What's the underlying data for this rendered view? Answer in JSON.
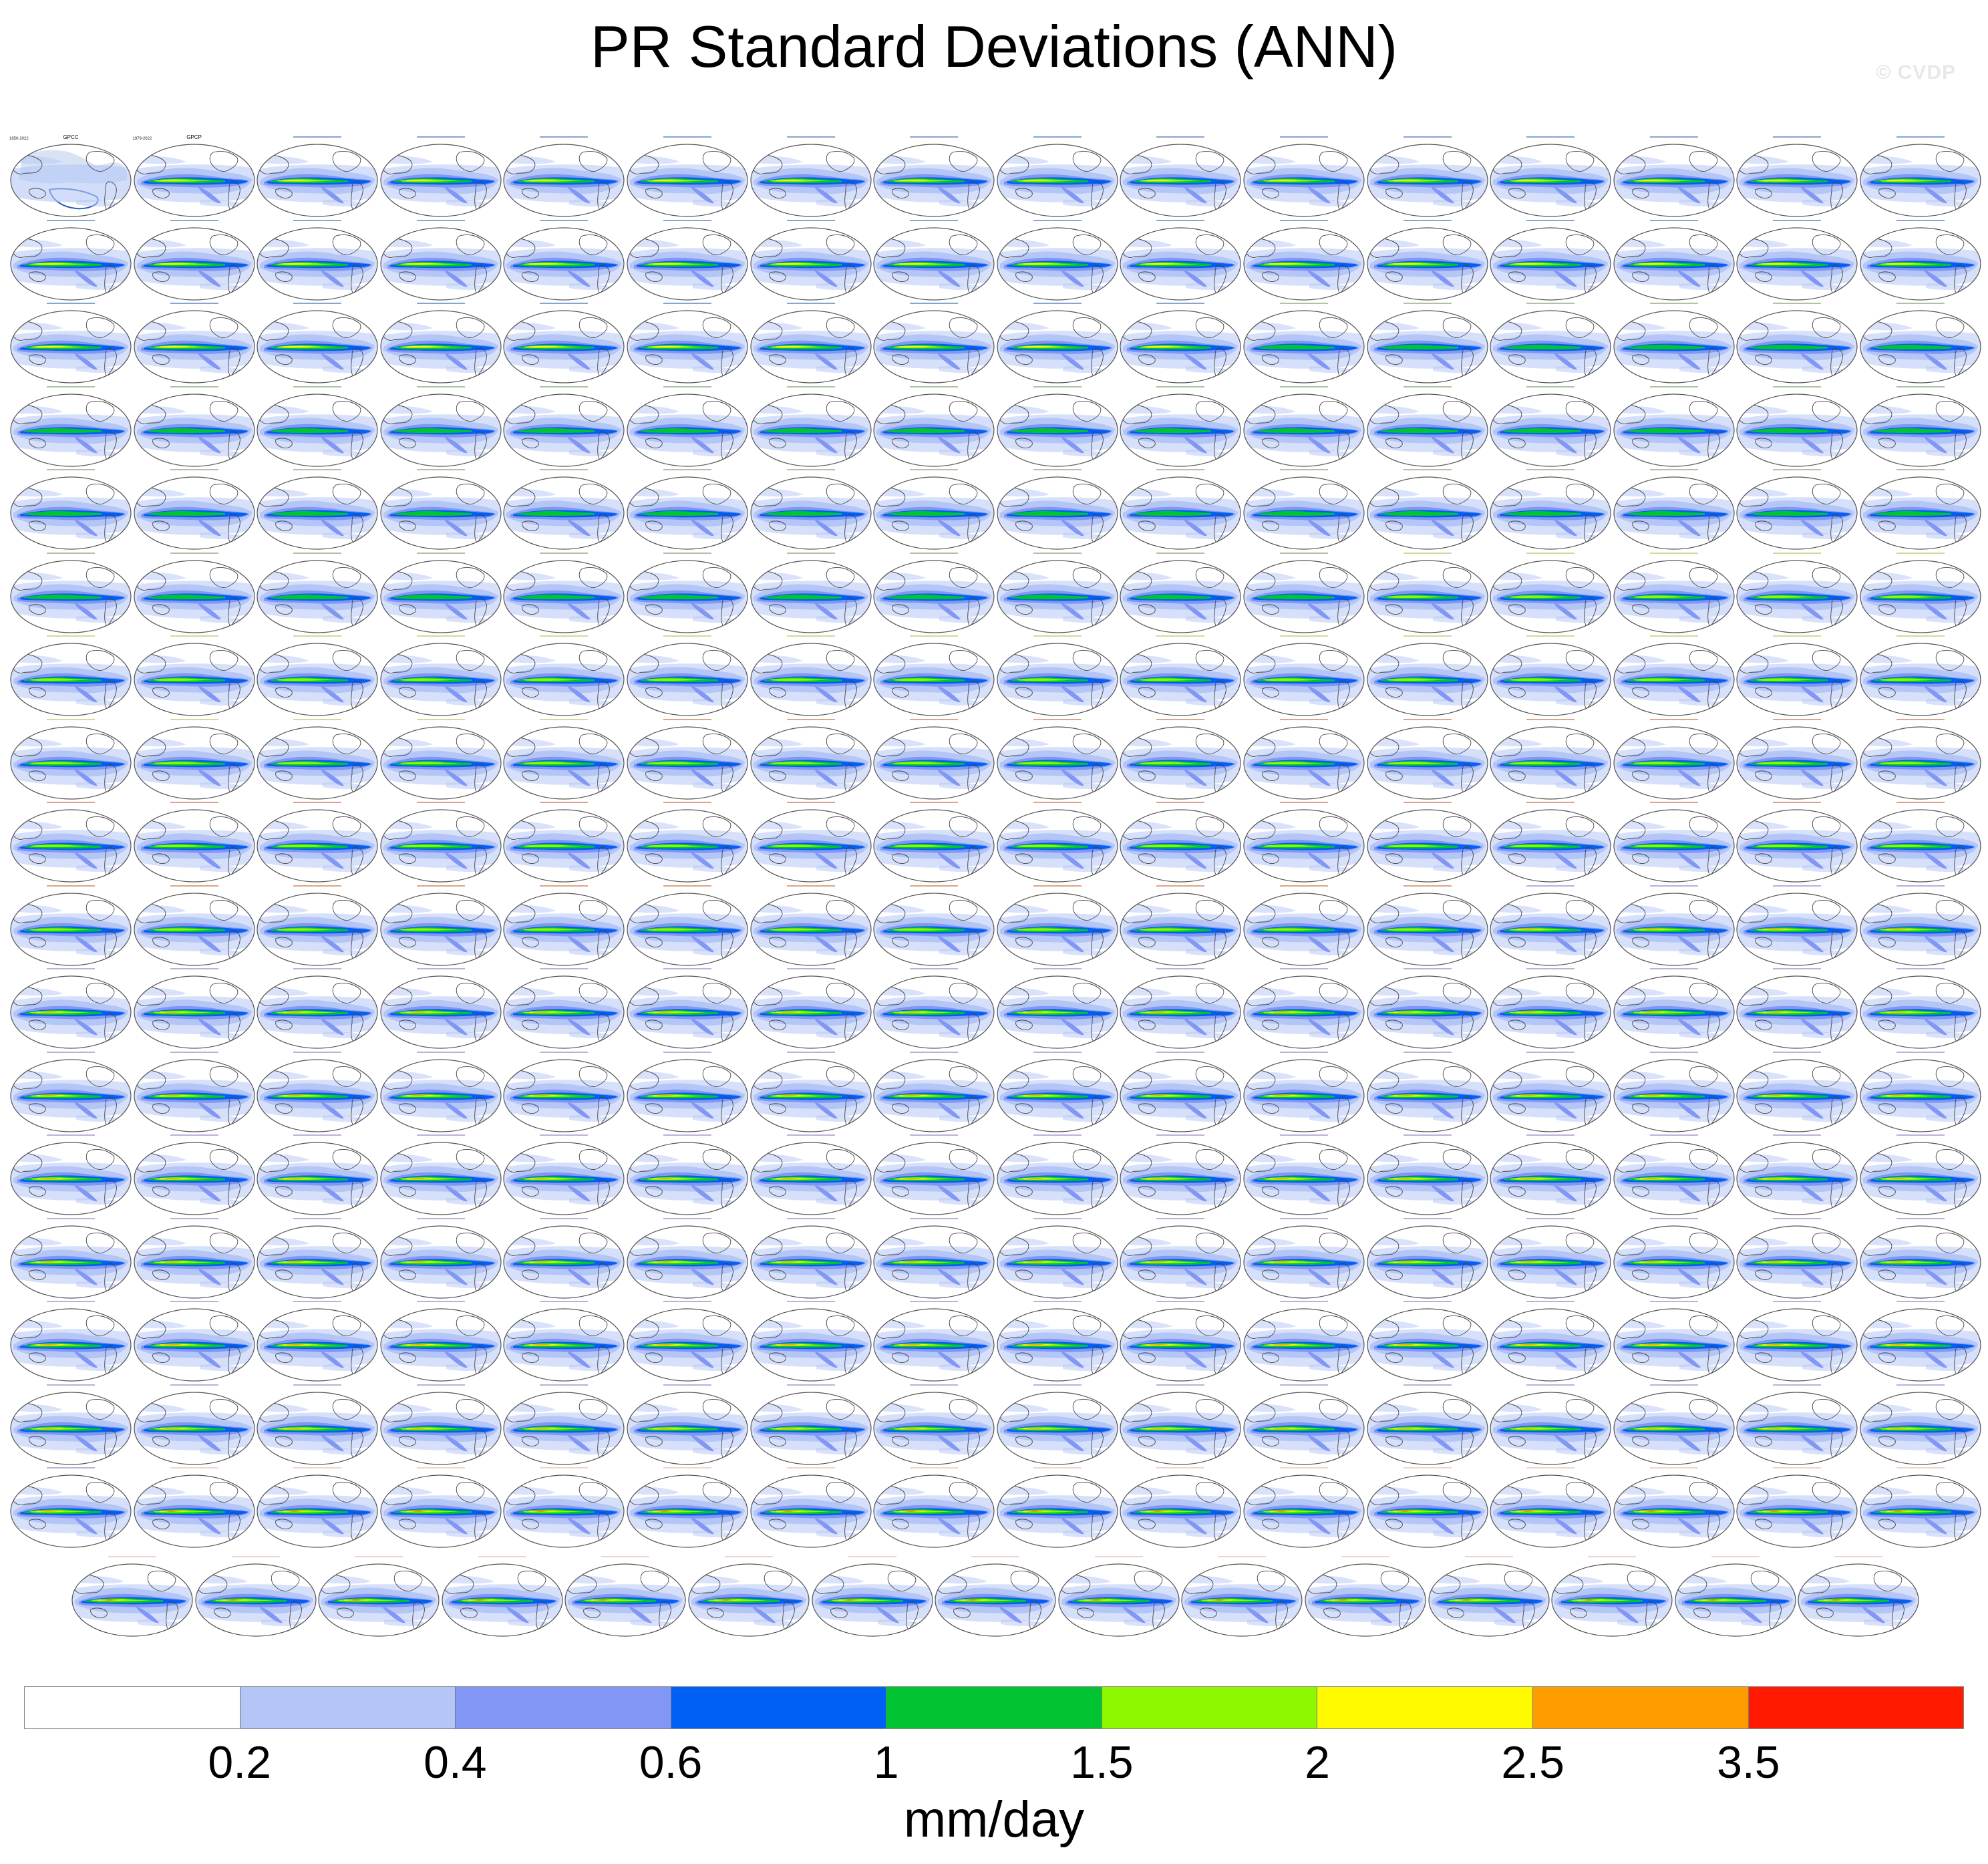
{
  "title": "PR Standard Deviations (ANN)",
  "watermark": "© CVDP",
  "colorbar": {
    "colors": [
      "#ffffff",
      "#b4c6f6",
      "#8196f5",
      "#0060f5",
      "#00c431",
      "#8ef800",
      "#fffa00",
      "#ff9c00",
      "#ff1a00"
    ],
    "ticks": [
      "0.2",
      "0.4",
      "0.6",
      "1",
      "1.5",
      "2",
      "2.5",
      "3.5"
    ],
    "units": "mm/day"
  },
  "panel_grid": {
    "rows": 18,
    "columns": 16,
    "last_row_panels": 15,
    "title_colors": {
      "obs": "#000000",
      "access": "#1f5fa8",
      "canesm": "#6e8f5a",
      "bright": "#b6b64a",
      "cesm1": "#c05a2a",
      "cesm2": "#8a6cc0",
      "cesm2w": "#e8b0a0"
    },
    "row_groups": [
      [
        "obs",
        "obs",
        "access",
        "access",
        "access",
        "access",
        "access",
        "access",
        "access",
        "access",
        "access",
        "access",
        "access",
        "access",
        "access",
        "access"
      ],
      [
        "access",
        "access",
        "access",
        "access",
        "access",
        "access",
        "access",
        "access",
        "access",
        "access",
        "access",
        "access",
        "access",
        "access",
        "access",
        "access"
      ],
      [
        "access",
        "access",
        "access",
        "access",
        "access",
        "access",
        "access",
        "access",
        "access",
        "access",
        "canesm",
        "canesm",
        "canesm",
        "canesm",
        "canesm",
        "canesm"
      ],
      [
        "canesm",
        "canesm",
        "canesm",
        "canesm",
        "canesm",
        "canesm",
        "canesm",
        "canesm",
        "canesm",
        "canesm",
        "canesm",
        "canesm",
        "canesm",
        "canesm",
        "canesm",
        "canesm"
      ],
      [
        "canesm",
        "canesm",
        "canesm",
        "canesm",
        "canesm",
        "canesm",
        "canesm",
        "canesm",
        "canesm",
        "canesm",
        "canesm",
        "canesm",
        "canesm",
        "canesm",
        "canesm",
        "canesm"
      ],
      [
        "canesm",
        "canesm",
        "canesm",
        "canesm",
        "canesm",
        "canesm",
        "canesm",
        "canesm",
        "canesm",
        "canesm",
        "canesm",
        "bright",
        "bright",
        "bright",
        "bright",
        "bright"
      ],
      [
        "bright",
        "bright",
        "bright",
        "bright",
        "bright",
        "bright",
        "bright",
        "bright",
        "bright",
        "bright",
        "bright",
        "bright",
        "bright",
        "bright",
        "bright",
        "bright"
      ],
      [
        "bright",
        "bright",
        "bright",
        "bright",
        "bright",
        "cesm1",
        "cesm1",
        "cesm1",
        "cesm1",
        "cesm1",
        "cesm1",
        "cesm1",
        "cesm1",
        "cesm1",
        "cesm1",
        "cesm1"
      ],
      [
        "cesm1",
        "cesm1",
        "cesm1",
        "cesm1",
        "cesm1",
        "cesm1",
        "cesm1",
        "cesm1",
        "cesm1",
        "cesm1",
        "cesm1",
        "cesm1",
        "cesm1",
        "cesm1",
        "cesm1",
        "cesm1"
      ],
      [
        "cesm1",
        "cesm1",
        "cesm1",
        "cesm1",
        "cesm1",
        "cesm1",
        "cesm1",
        "cesm1",
        "cesm1",
        "cesm1",
        "cesm1",
        "cesm1",
        "cesm2",
        "cesm2",
        "cesm2",
        "cesm2"
      ],
      [
        "cesm2",
        "cesm2",
        "cesm2",
        "cesm2",
        "cesm2",
        "cesm2",
        "cesm2",
        "cesm2",
        "cesm2",
        "cesm2",
        "cesm2",
        "cesm2",
        "cesm2",
        "cesm2",
        "cesm2",
        "cesm2"
      ],
      [
        "cesm2",
        "cesm2",
        "cesm2",
        "cesm2",
        "cesm2",
        "cesm2",
        "cesm2",
        "cesm2",
        "cesm2",
        "cesm2",
        "cesm2",
        "cesm2",
        "cesm2",
        "cesm2",
        "cesm2",
        "cesm2"
      ],
      [
        "cesm2",
        "cesm2",
        "cesm2",
        "cesm2",
        "cesm2",
        "cesm2",
        "cesm2",
        "cesm2",
        "cesm2",
        "cesm2",
        "cesm2",
        "cesm2",
        "cesm2",
        "cesm2",
        "cesm2",
        "cesm2"
      ],
      [
        "cesm2",
        "cesm2",
        "cesm2",
        "cesm2",
        "cesm2",
        "cesm2",
        "cesm2",
        "cesm2",
        "cesm2",
        "cesm2",
        "cesm2",
        "cesm2",
        "cesm2",
        "cesm2",
        "cesm2",
        "cesm2"
      ],
      [
        "cesm2",
        "cesm2",
        "cesm2",
        "cesm2",
        "cesm2",
        "cesm2",
        "cesm2",
        "cesm2",
        "cesm2",
        "cesm2",
        "cesm2",
        "cesm2",
        "cesm2",
        "cesm2",
        "cesm2",
        "cesm2"
      ],
      [
        "cesm2",
        "cesm2",
        "cesm2",
        "cesm2",
        "cesm2",
        "cesm2",
        "cesm2",
        "cesm2",
        "cesm2",
        "cesm2",
        "cesm2",
        "cesm2",
        "cesm2",
        "cesm2",
        "cesm2",
        "cesm2"
      ],
      [
        "cesm2",
        "cesm2w",
        "cesm2w",
        "cesm2w",
        "cesm2w",
        "cesm2w",
        "cesm2w",
        "cesm2w",
        "cesm2w",
        "cesm2w",
        "cesm2w",
        "cesm2w",
        "cesm2w",
        "cesm2w",
        "cesm2w",
        "cesm2w"
      ],
      [
        "cesm2w",
        "cesm2w",
        "cesm2w",
        "cesm2w",
        "cesm2w",
        "cesm2w",
        "cesm2w",
        "cesm2w",
        "cesm2w",
        "cesm2w",
        "cesm2w",
        "cesm2w",
        "cesm2w",
        "cesm2w",
        "cesm2w"
      ]
    ],
    "panel_labels": [
      {
        "row": 0,
        "col": 0,
        "title": "GPCC",
        "years": "1950-2022"
      },
      {
        "row": 0,
        "col": 1,
        "title": "GPCP",
        "years": "1979-2022"
      }
    ],
    "observation_panel_colors": {
      "ocean": "#ffffff",
      "land_shade": "#c8d8f0",
      "coast": "#2a5fb0"
    },
    "map_colors": {
      "outline": "#555555",
      "coast": "#444444"
    }
  }
}
